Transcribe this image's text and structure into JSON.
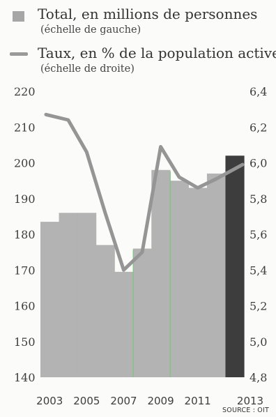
{
  "legend": {
    "bar_title": "Total, en millions de personnes",
    "bar_sub": "(échelle de gauche)",
    "line_title": "Taux, en % de la population active",
    "line_sub": "(échelle de droite)"
  },
  "source": "SOURCE : OIT",
  "colors": {
    "bar": "#b3b3b3",
    "bar_last": "#3d3d3d",
    "line": "#959595",
    "green_marker": "#7dc77d",
    "axis_text": "#3d3d3d"
  },
  "chart_data": {
    "type": "bar",
    "categories": [
      "2003",
      "2004",
      "2005",
      "2006",
      "2007",
      "2008",
      "2009",
      "2010",
      "2011",
      "2012",
      "2013"
    ],
    "x_tick_labels": [
      "2003",
      "2005",
      "2007",
      "2009",
      "2011",
      "2013"
    ],
    "left_axis": {
      "ylim": [
        140,
        220
      ],
      "ticks": [
        140,
        150,
        160,
        170,
        180,
        190,
        200,
        210,
        220
      ]
    },
    "right_axis": {
      "ylim": [
        4.8,
        6.4
      ],
      "ticks": [
        "4,8",
        "5,0",
        "5,2",
        "5,4",
        "5,6",
        "5,8",
        "6,0",
        "6,2",
        "6,4"
      ]
    },
    "series": [
      {
        "name": "Total, en millions de personnes",
        "type": "bar",
        "axis": "left",
        "values": [
          183.5,
          186,
          186,
          177,
          169.5,
          176,
          198,
          195,
          193,
          197,
          202
        ]
      },
      {
        "name": "Taux, en % de la population active",
        "type": "line",
        "axis": "right",
        "values": [
          6.27,
          6.24,
          6.06,
          5.72,
          5.4,
          5.5,
          6.09,
          5.92,
          5.86,
          5.91,
          5.99
        ]
      }
    ],
    "vertical_markers": [
      "2007",
      "2009"
    ],
    "highlight_category": "2013",
    "grid": false
  }
}
